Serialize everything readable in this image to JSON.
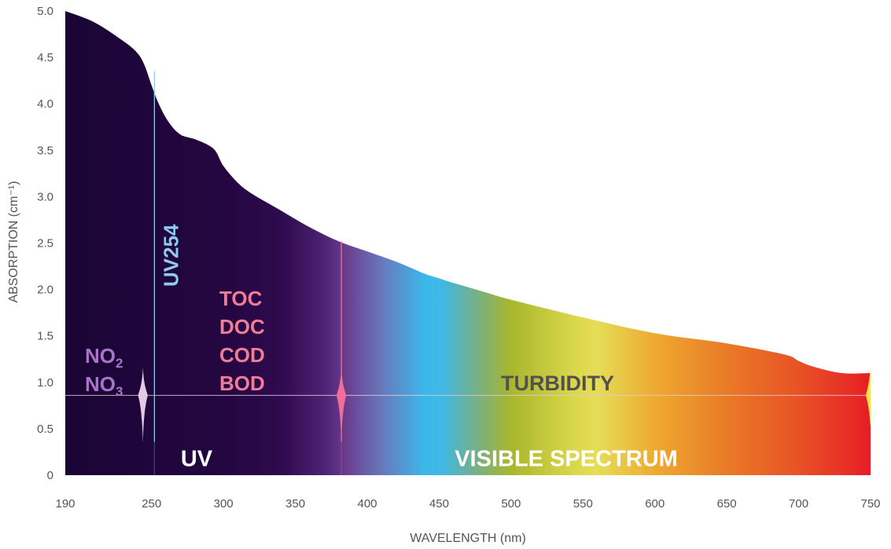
{
  "chart_data": {
    "type": "area",
    "xlabel": "WAVELENGTH (nm)",
    "ylabel": "ABSORPTION (cm⁻¹)",
    "xlim": [
      190,
      750
    ],
    "ylim": [
      0,
      5.0
    ],
    "x_ticks": [
      "190",
      "250",
      "300",
      "350",
      "400",
      "450",
      "500",
      "550",
      "600",
      "650",
      "700",
      "750"
    ],
    "y_ticks": [
      "0",
      "0.5",
      "1.0",
      "1.5",
      "2.0",
      "2.5",
      "3.0",
      "3.5",
      "4.0",
      "4.5",
      "5.0"
    ],
    "curve": {
      "x": [
        190,
        210,
        230,
        240,
        245,
        250,
        255,
        262,
        270,
        280,
        290,
        295,
        300,
        310,
        320,
        340,
        360,
        380,
        400,
        420,
        440,
        450,
        460,
        480,
        500,
        550,
        600,
        650,
        690,
        700,
        710,
        730,
        750
      ],
      "y": [
        5.0,
        4.88,
        4.68,
        4.55,
        4.42,
        4.2,
        4.0,
        3.8,
        3.67,
        3.62,
        3.55,
        3.48,
        3.33,
        3.15,
        3.03,
        2.85,
        2.67,
        2.52,
        2.41,
        2.3,
        2.17,
        2.12,
        2.07,
        1.98,
        1.89,
        1.7,
        1.53,
        1.42,
        1.3,
        1.23,
        1.17,
        1.1,
        1.1
      ]
    },
    "baseline_y": 0.86,
    "peaks": [
      {
        "x": 244,
        "color": "#e6c8e6"
      },
      {
        "x": 382,
        "color": "#f06e9a"
      },
      {
        "x": 750,
        "color": "#fbe347"
      }
    ],
    "markers": [
      {
        "x": 252,
        "color": "#8fcaf0",
        "label": "UV254"
      },
      {
        "x": 382,
        "color": "#f06e9a",
        "label": ""
      }
    ],
    "band": {
      "y_top": 0.36,
      "labels": [
        "UV",
        "VISIBLE SPECTRUM"
      ]
    },
    "annotations": {
      "nitrogen": {
        "lines": [
          {
            "main": "NO",
            "sub": "2"
          },
          {
            "main": "NO",
            "sub": "3"
          }
        ],
        "color": "#a775c6"
      },
      "organics": {
        "lines": [
          "TOC",
          "DOC",
          "COD",
          "BOD"
        ],
        "color": "#f07c97"
      },
      "turbidity": {
        "text": "TURBIDITY",
        "color": "#54504f"
      }
    },
    "spectrum_stops": [
      {
        "x": 190,
        "color": "#1a0535"
      },
      {
        "x": 300,
        "color": "#240640"
      },
      {
        "x": 340,
        "color": "#2e0a4e"
      },
      {
        "x": 370,
        "color": "#4d2274"
      },
      {
        "x": 385,
        "color": "#6a3c8e"
      },
      {
        "x": 410,
        "color": "#6878bc"
      },
      {
        "x": 440,
        "color": "#3bb8ea"
      },
      {
        "x": 452,
        "color": "#3fb8e4"
      },
      {
        "x": 475,
        "color": "#74b08a"
      },
      {
        "x": 500,
        "color": "#a9b72c"
      },
      {
        "x": 545,
        "color": "#dbd84c"
      },
      {
        "x": 560,
        "color": "#e6dd57"
      },
      {
        "x": 600,
        "color": "#eeaa30"
      },
      {
        "x": 650,
        "color": "#e97a26"
      },
      {
        "x": 700,
        "color": "#e85226"
      },
      {
        "x": 750,
        "color": "#e61e26"
      }
    ],
    "grid": false,
    "legend": "none"
  }
}
